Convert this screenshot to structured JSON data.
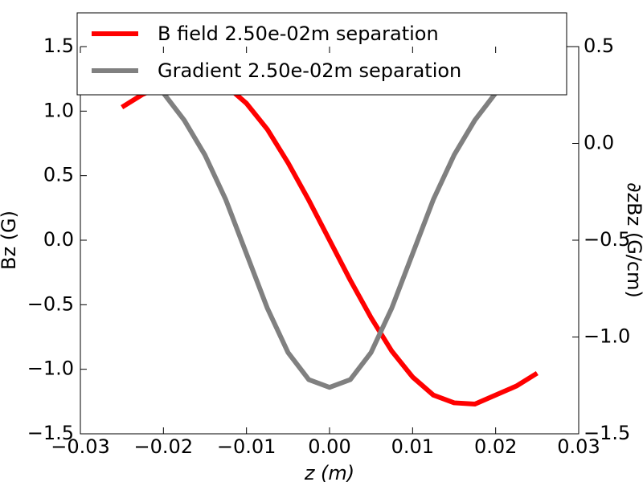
{
  "chart_data": {
    "type": "line",
    "x_label": "z (m)",
    "y_label": "Bz (G)",
    "y2_label": "∂zBz (G/cm)",
    "x": [
      -0.025,
      -0.0225,
      -0.02,
      -0.0175,
      -0.015,
      -0.0125,
      -0.01,
      -0.0075,
      -0.005,
      -0.0025,
      0,
      0.0025,
      0.005,
      0.0075,
      0.01,
      0.0125,
      0.015,
      0.0175,
      0.02,
      0.0225,
      0.025
    ],
    "series": [
      {
        "name": "B field 2.50e-02m separation",
        "color": "#ff0000",
        "values": [
          1.03,
          1.13,
          1.2,
          1.27,
          1.26,
          1.2,
          1.06,
          0.86,
          0.6,
          0.31,
          0,
          -0.31,
          -0.6,
          -0.86,
          -1.06,
          -1.2,
          -1.26,
          -1.27,
          -1.2,
          -1.13,
          -1.03
        ]
      },
      {
        "name": "Gradient 2.50e-02m separation",
        "color": "#808080",
        "axis": "y2",
        "values": [
          0.38,
          0.36,
          0.26,
          0.12,
          -0.06,
          -0.29,
          -0.57,
          -0.85,
          -1.08,
          -1.22,
          -1.26,
          -1.22,
          -1.08,
          -0.85,
          -0.57,
          -0.29,
          -0.06,
          0.12,
          0.26,
          0.36,
          0.38
        ]
      }
    ],
    "xlim": [
      -0.03,
      0.03
    ],
    "xticks": [
      {
        "value": -0.03,
        "label": "−0.03"
      },
      {
        "value": -0.02,
        "label": "−0.02"
      },
      {
        "value": -0.01,
        "label": "−0.01"
      },
      {
        "value": 0,
        "label": "0.00"
      },
      {
        "value": 0.01,
        "label": "0.01"
      },
      {
        "value": 0.02,
        "label": "0.02"
      },
      {
        "value": 0.03,
        "label": "0.03"
      }
    ],
    "ylim": [
      -1.5,
      1.5
    ],
    "yticks": [
      {
        "value": -1.5,
        "label": "−1.5"
      },
      {
        "value": -1.0,
        "label": "−1.0"
      },
      {
        "value": -0.5,
        "label": "−0.5"
      },
      {
        "value": 0,
        "label": "0.0"
      },
      {
        "value": 0.5,
        "label": "0.5"
      },
      {
        "value": 1.0,
        "label": "1.0"
      },
      {
        "value": 1.5,
        "label": "1.5"
      }
    ],
    "y2lim": [
      -1.5,
      0.5
    ],
    "y2ticks": [
      {
        "value": -1.5,
        "label": "−1.5"
      },
      {
        "value": -1.0,
        "label": "−1.0"
      },
      {
        "value": -0.5,
        "label": "−0.5"
      },
      {
        "value": 0,
        "label": "0.0"
      },
      {
        "value": 0.5,
        "label": "0.5"
      }
    ],
    "legend": "upper center"
  }
}
